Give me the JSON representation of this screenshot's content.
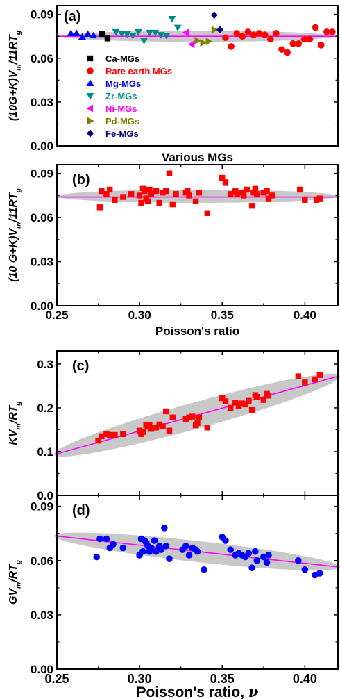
{
  "colors": {
    "fit_line": "#ff00ff",
    "ellipse": "#c8c8c8",
    "ca": "#000000",
    "rare_earth": "#ff0000",
    "mg": "#0000ff",
    "zr": "#008b8b",
    "ni": "#ff00ff",
    "pd": "#808000",
    "fe": "#000080",
    "red_square": "#ff0000",
    "blue_circle": "#0000ff"
  },
  "chart_data": [
    {
      "type": "scatter",
      "panel_label": "(a)",
      "xlabel": "Various MGs",
      "ylabel": "(10G+K)V",
      "ylabel_sub1": "m",
      "ylabel_mid": "/11RT",
      "ylabel_sub2": "g",
      "ylim": [
        0.0,
        0.096
      ],
      "yticks": [
        "0.00",
        "0.03",
        "0.06",
        "0.09"
      ],
      "ytick_values": [
        0.0,
        0.03,
        0.06,
        0.09
      ],
      "xlim": [
        0,
        100
      ],
      "fit_value": 0.075,
      "ellipse": {
        "cx": 50,
        "cy": 0.075,
        "rx": 48,
        "ry": 0.0038
      },
      "legend_position": "left-center",
      "series": [
        {
          "name": "Ca-MGs",
          "marker": "square",
          "x": [
            16,
            18
          ],
          "y": [
            0.0765,
            0.0735
          ]
        },
        {
          "name": "Rare earth MGs",
          "marker": "circle",
          "x": [
            60,
            62,
            64,
            66,
            68,
            70,
            72,
            74,
            76,
            78,
            80,
            82,
            84,
            86,
            88,
            90,
            92,
            94,
            96,
            98
          ],
          "y": [
            0.074,
            0.068,
            0.077,
            0.075,
            0.078,
            0.076,
            0.077,
            0.076,
            0.073,
            0.077,
            0.066,
            0.064,
            0.07,
            0.07,
            0.073,
            0.073,
            0.081,
            0.069,
            0.078,
            0.078
          ]
        },
        {
          "name": "Mg-MGs",
          "marker": "triangle-up",
          "x": [
            5,
            7,
            9,
            11,
            13
          ],
          "y": [
            0.077,
            0.077,
            0.0745,
            0.0765,
            0.0755
          ]
        },
        {
          "name": "Zr-MGs",
          "marker": "triangle-down",
          "x": [
            21,
            23,
            25,
            27,
            29,
            31,
            33,
            35,
            37,
            39,
            41,
            43
          ],
          "y": [
            0.078,
            0.077,
            0.0765,
            0.0755,
            0.078,
            0.072,
            0.0775,
            0.0775,
            0.076,
            0.0755,
            0.087,
            0.081
          ]
        },
        {
          "name": "Ni-MGs",
          "marker": "triangle-left",
          "x": [
            46,
            48
          ],
          "y": [
            0.0775,
            0.0695
          ]
        },
        {
          "name": "Pd-MGs",
          "marker": "triangle-right",
          "x": [
            50,
            52,
            54,
            56
          ],
          "y": [
            0.072,
            0.0705,
            0.0715,
            0.0795
          ]
        },
        {
          "name": "Fe-MGs",
          "marker": "diamond",
          "x": [
            56,
            58
          ],
          "y": [
            0.0895,
            0.0795
          ]
        }
      ]
    },
    {
      "type": "scatter",
      "panel_label": "(b)",
      "xlabel": "Poisson's ratio",
      "ylabel": "(10 G+K)V",
      "ylabel_sub1": "m",
      "ylabel_mid": "/11RT",
      "ylabel_sub2": "g",
      "xlim": [
        0.25,
        0.42
      ],
      "ylim": [
        0.0,
        0.096
      ],
      "xticks": [
        "0.25",
        "0.30",
        "0.35",
        "0.40"
      ],
      "xtick_values": [
        0.25,
        0.3,
        0.35,
        0.4
      ],
      "yticks": [
        "0.00",
        "0.03",
        "0.06",
        "0.09"
      ],
      "ytick_values": [
        0.0,
        0.03,
        0.06,
        0.09
      ],
      "fit_value": 0.074,
      "ellipse": {
        "cx": 0.335,
        "cy": 0.0745,
        "rx": 0.085,
        "ry": 0.0045
      },
      "series": [
        {
          "marker": "square",
          "x": [
            0.276,
            0.277,
            0.28,
            0.282,
            0.285,
            0.29,
            0.295,
            0.3,
            0.301,
            0.302,
            0.303,
            0.304,
            0.305,
            0.306,
            0.307,
            0.31,
            0.312,
            0.314,
            0.316,
            0.318,
            0.32,
            0.322,
            0.328,
            0.329,
            0.33,
            0.334,
            0.336,
            0.341,
            0.35,
            0.352,
            0.355,
            0.358,
            0.359,
            0.362,
            0.363,
            0.365,
            0.368,
            0.369,
            0.37,
            0.371,
            0.375,
            0.377,
            0.378,
            0.38,
            0.397,
            0.4,
            0.407,
            0.409
          ],
          "y": [
            0.067,
            0.078,
            0.076,
            0.079,
            0.072,
            0.074,
            0.076,
            0.075,
            0.07,
            0.08,
            0.078,
            0.073,
            0.071,
            0.079,
            0.076,
            0.078,
            0.07,
            0.077,
            0.078,
            0.09,
            0.069,
            0.076,
            0.077,
            0.078,
            0.075,
            0.071,
            0.077,
            0.063,
            0.087,
            0.084,
            0.076,
            0.078,
            0.076,
            0.077,
            0.075,
            0.079,
            0.068,
            0.077,
            0.08,
            0.076,
            0.077,
            0.078,
            0.073,
            0.075,
            0.079,
            0.072,
            0.072,
            0.073
          ]
        }
      ]
    },
    {
      "type": "scatter",
      "panel_label": "(c)",
      "ylabel": "KV",
      "ylabel_sub1": "m",
      "ylabel_mid": "/RT",
      "ylabel_sub2": "g",
      "xlim": [
        0.25,
        0.42
      ],
      "ylim": [
        0.0,
        0.33
      ],
      "yticks": [
        "0.0",
        "0.1",
        "0.2",
        "0.3"
      ],
      "ytick_values": [
        0.0,
        0.1,
        0.2,
        0.3
      ],
      "fit_line": {
        "x": [
          0.25,
          0.42
        ],
        "y": [
          0.095,
          0.272
        ]
      },
      "ellipse": {
        "x1": 0.25,
        "y1": 0.095,
        "x2": 0.42,
        "y2": 0.272,
        "width": 0.03
      },
      "series": [
        {
          "marker": "square",
          "x": [
            0.275,
            0.277,
            0.28,
            0.282,
            0.285,
            0.29,
            0.3,
            0.301,
            0.302,
            0.304,
            0.305,
            0.306,
            0.307,
            0.31,
            0.312,
            0.314,
            0.316,
            0.318,
            0.32,
            0.328,
            0.33,
            0.332,
            0.334,
            0.335,
            0.336,
            0.341,
            0.35,
            0.352,
            0.355,
            0.358,
            0.36,
            0.362,
            0.364,
            0.366,
            0.368,
            0.37,
            0.371,
            0.375,
            0.377,
            0.378,
            0.396,
            0.4,
            0.406,
            0.409
          ],
          "y": [
            0.125,
            0.135,
            0.14,
            0.138,
            0.138,
            0.14,
            0.148,
            0.14,
            0.145,
            0.16,
            0.158,
            0.16,
            0.152,
            0.155,
            0.162,
            0.158,
            0.192,
            0.148,
            0.178,
            0.175,
            0.178,
            0.18,
            0.16,
            0.165,
            0.178,
            0.155,
            0.222,
            0.215,
            0.2,
            0.212,
            0.205,
            0.21,
            0.208,
            0.216,
            0.195,
            0.229,
            0.225,
            0.218,
            0.232,
            0.228,
            0.272,
            0.258,
            0.265,
            0.275
          ]
        }
      ]
    },
    {
      "type": "scatter",
      "panel_label": "(d)",
      "xlabel": "Poisson's ratio,",
      "xlabel_symbol": "ν",
      "ylabel": "GV",
      "ylabel_sub1": "m",
      "ylabel_mid": "/RT",
      "ylabel_sub2": "g",
      "xlim": [
        0.25,
        0.42
      ],
      "ylim": [
        0.0,
        0.096
      ],
      "xticks": [
        "0.25",
        "0.30",
        "0.35",
        "0.40"
      ],
      "xtick_values": [
        0.25,
        0.3,
        0.35,
        0.4
      ],
      "yticks": [
        "0.00",
        "0.03",
        "0.06",
        "0.09"
      ],
      "ytick_values": [
        0.0,
        0.03,
        0.06,
        0.09
      ],
      "fit_line": {
        "x": [
          0.25,
          0.42
        ],
        "y": [
          0.0735,
          0.0565
        ]
      },
      "ellipse": {
        "x1": 0.25,
        "y1": 0.0735,
        "x2": 0.42,
        "y2": 0.0565,
        "width": 0.0058
      },
      "series": [
        {
          "marker": "circle",
          "x": [
            0.274,
            0.276,
            0.28,
            0.282,
            0.284,
            0.29,
            0.3,
            0.301,
            0.302,
            0.303,
            0.304,
            0.305,
            0.306,
            0.307,
            0.309,
            0.31,
            0.312,
            0.313,
            0.315,
            0.316,
            0.318,
            0.326,
            0.328,
            0.33,
            0.332,
            0.334,
            0.335,
            0.339,
            0.35,
            0.352,
            0.355,
            0.358,
            0.36,
            0.362,
            0.364,
            0.366,
            0.368,
            0.37,
            0.371,
            0.375,
            0.377,
            0.378,
            0.396,
            0.4,
            0.406,
            0.409
          ],
          "y": [
            0.062,
            0.072,
            0.072,
            0.067,
            0.069,
            0.067,
            0.063,
            0.072,
            0.065,
            0.071,
            0.07,
            0.068,
            0.065,
            0.067,
            0.071,
            0.065,
            0.068,
            0.066,
            0.078,
            0.068,
            0.061,
            0.066,
            0.068,
            0.063,
            0.067,
            0.066,
            0.065,
            0.055,
            0.073,
            0.071,
            0.066,
            0.063,
            0.064,
            0.063,
            0.062,
            0.064,
            0.056,
            0.065,
            0.06,
            0.062,
            0.059,
            0.063,
            0.06,
            0.055,
            0.052,
            0.053
          ]
        }
      ]
    }
  ]
}
